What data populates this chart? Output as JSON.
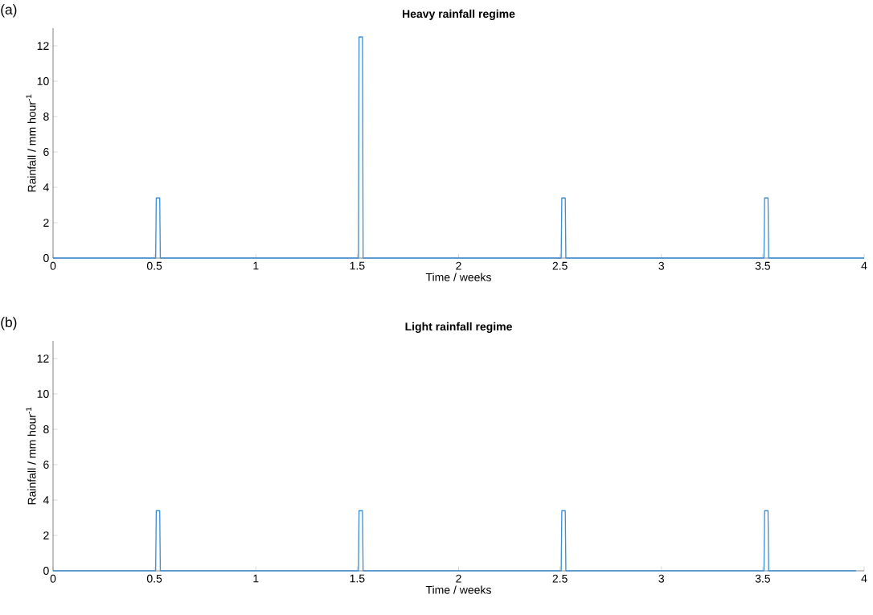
{
  "chart_data": [
    {
      "type": "line",
      "title": "Heavy rainfall regime",
      "xlabel": "Time / weeks",
      "ylabel": "Rainfall / mm hour$^{-1}$",
      "annotations": [
        "(a)"
      ],
      "series": [
        {
          "color": "#3d8fd6",
          "x": [
            0,
            0.506,
            0.509,
            0.526,
            0.529,
            1.506,
            1.509,
            1.526,
            1.529,
            2.506,
            2.509,
            2.526,
            2.529,
            3.506,
            3.509,
            3.526,
            3.529,
            4
          ],
          "values": [
            0,
            0,
            3.4,
            3.4,
            0,
            0,
            12.5,
            12.5,
            0,
            0,
            3.4,
            3.4,
            0,
            0,
            3.4,
            3.4,
            0,
            0
          ]
        }
      ],
      "xlim": [
        0,
        4
      ],
      "ylim": [
        0,
        13
      ],
      "xticks": [
        0,
        0.5,
        1,
        1.5,
        2,
        2.5,
        3,
        3.5,
        4
      ],
      "yticks": [
        0,
        2,
        4,
        6,
        8,
        10,
        12
      ],
      "grid": false,
      "marker": "none"
    },
    {
      "type": "line",
      "title": "Light rainfall regime",
      "xlabel": "Time / weeks",
      "ylabel": "Rainfall / mm hour$^{-1}$",
      "annotations": [
        "(b)"
      ],
      "series": [
        {
          "color": "#3d8fd6",
          "x": [
            0,
            0.506,
            0.509,
            0.526,
            0.529,
            1.506,
            1.509,
            1.526,
            1.529,
            2.506,
            2.509,
            2.526,
            2.529,
            3.506,
            3.509,
            3.526,
            3.529,
            3.96
          ],
          "values": [
            0,
            0,
            3.4,
            3.4,
            0,
            0,
            3.4,
            3.4,
            0,
            0,
            3.4,
            3.4,
            0,
            0,
            3.4,
            3.4,
            0,
            0
          ]
        }
      ],
      "xlim": [
        0,
        4
      ],
      "ylim": [
        0,
        13
      ],
      "xticks": [
        0,
        0.5,
        1,
        1.5,
        2,
        2.5,
        3,
        3.5,
        4
      ],
      "yticks": [
        0,
        2,
        4,
        6,
        8,
        10,
        12
      ],
      "grid": false,
      "marker": "none"
    }
  ]
}
